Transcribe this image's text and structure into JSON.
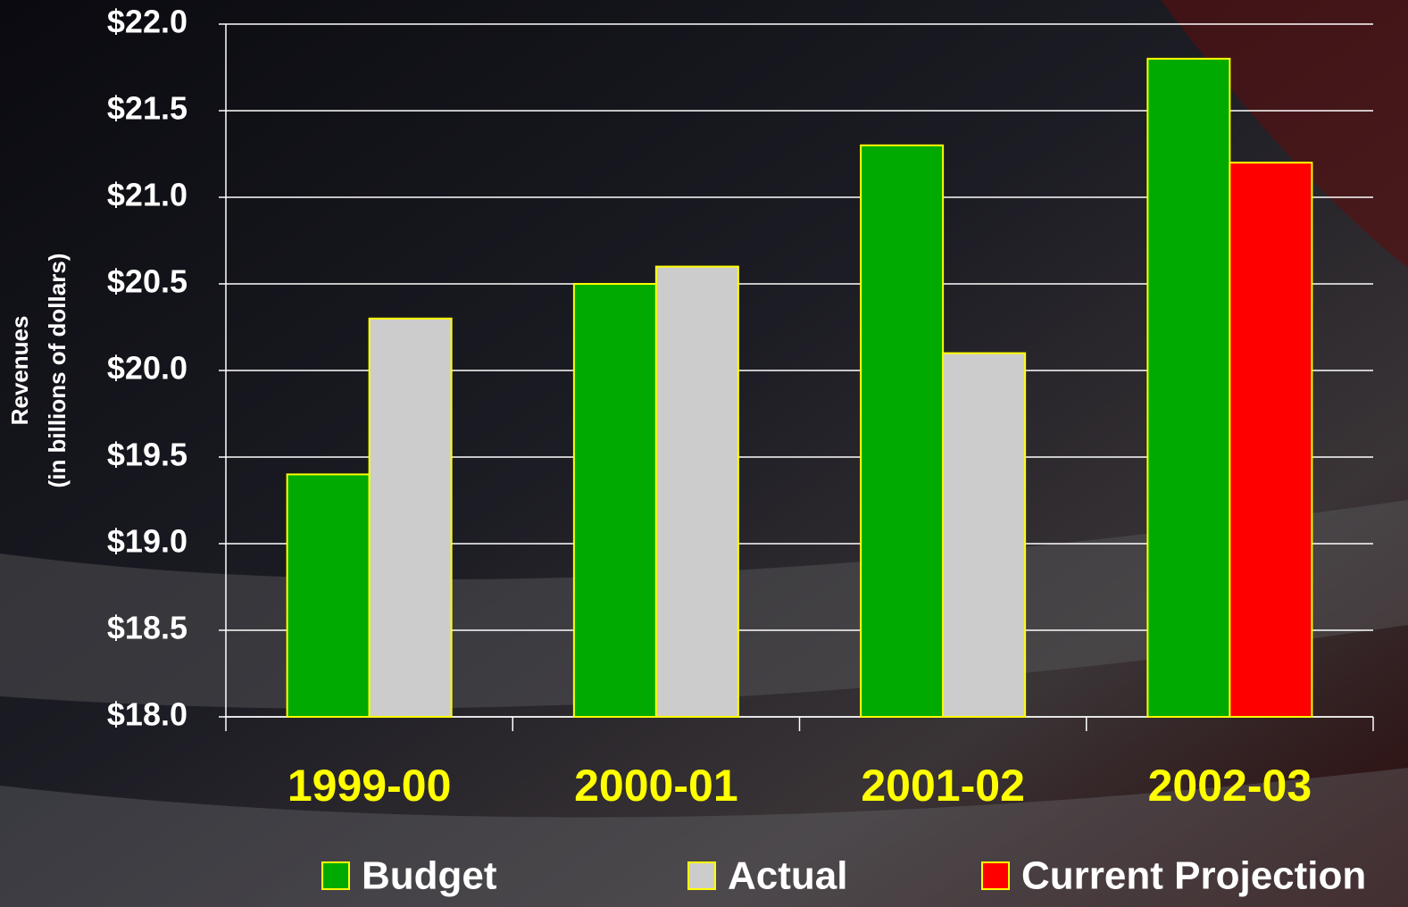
{
  "chart_data": {
    "type": "bar",
    "ylabel": [
      "Revenues",
      "(in billions of dollars)"
    ],
    "categories": [
      "1999-00",
      "2000-01",
      "2001-02",
      "2002-03"
    ],
    "series": [
      {
        "name": "Budget",
        "color": "#00aa00",
        "values": [
          19.4,
          20.5,
          21.3,
          21.8
        ]
      },
      {
        "name": "Actual",
        "color": "#cccccc",
        "values": [
          20.3,
          20.6,
          20.1,
          null
        ]
      },
      {
        "name": "Current Projection",
        "color": "#ff0000",
        "values": [
          null,
          null,
          null,
          21.2
        ]
      }
    ],
    "ylim": [
      18,
      22
    ],
    "yticks": [
      {
        "value": 18,
        "label": "$18.0"
      },
      {
        "value": 18.5,
        "label": "$18.5"
      },
      {
        "value": 19,
        "label": "$19.0"
      },
      {
        "value": 19.5,
        "label": "$19.5"
      },
      {
        "value": 20,
        "label": "$20.0"
      },
      {
        "value": 20.5,
        "label": "$20.5"
      },
      {
        "value": 21,
        "label": "$21.0"
      },
      {
        "value": 21.5,
        "label": "$21.5"
      },
      {
        "value": 22,
        "label": "$22.0"
      }
    ],
    "grid": true
  }
}
